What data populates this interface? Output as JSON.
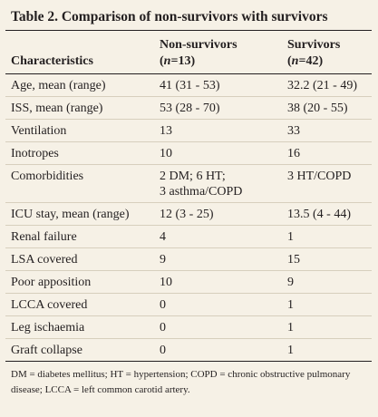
{
  "table": {
    "title": "Table 2. Comparison of non-survivors with survivors",
    "header": {
      "characteristics": "Characteristics",
      "non_survivors": {
        "label": "Non-survivors",
        "n_open": "(",
        "n_var": "n",
        "n_value": "=13)"
      },
      "survivors": {
        "label": "Survivors",
        "n_open": "(",
        "n_var": "n",
        "n_value": "=42)"
      }
    },
    "rows": [
      {
        "label": "Age, mean (range)",
        "non_survivors": [
          "41 (31 - 53)"
        ],
        "survivors": [
          "32.2 (21 - 49)"
        ]
      },
      {
        "label": "ISS, mean (range)",
        "non_survivors": [
          "53 (28 - 70)"
        ],
        "survivors": [
          "38 (20 - 55)"
        ]
      },
      {
        "label": "Ventilation",
        "non_survivors": [
          "13"
        ],
        "survivors": [
          "33"
        ]
      },
      {
        "label": "Inotropes",
        "non_survivors": [
          "10"
        ],
        "survivors": [
          "16"
        ]
      },
      {
        "label": "Comorbidities",
        "non_survivors": [
          "2 DM; 6 HT;",
          "3 asthma/COPD"
        ],
        "survivors": [
          "3 HT/COPD"
        ]
      },
      {
        "label": "ICU stay, mean (range)",
        "non_survivors": [
          "12 (3 - 25)"
        ],
        "survivors": [
          "13.5 (4 - 44)"
        ]
      },
      {
        "label": "Renal failure",
        "non_survivors": [
          "4"
        ],
        "survivors": [
          "1"
        ]
      },
      {
        "label": "LSA covered",
        "non_survivors": [
          "9"
        ],
        "survivors": [
          "15"
        ]
      },
      {
        "label": "Poor apposition",
        "non_survivors": [
          "10"
        ],
        "survivors": [
          "9"
        ]
      },
      {
        "label": "LCCA covered",
        "non_survivors": [
          "0"
        ],
        "survivors": [
          "1"
        ]
      },
      {
        "label": "Leg ischaemia",
        "non_survivors": [
          "0"
        ],
        "survivors": [
          "1"
        ]
      },
      {
        "label": "Graft collapse",
        "non_survivors": [
          "0"
        ],
        "survivors": [
          "1"
        ]
      }
    ],
    "footnote": "DM = diabetes mellitus; HT = hypertension; COPD = chronic obstructive pulmonary disease; LCCA = left common carotid artery."
  },
  "colors": {
    "background": "#f6f1e6",
    "text": "#231f20",
    "rule": "#231f20",
    "row_divider": "#d7cfbd"
  }
}
